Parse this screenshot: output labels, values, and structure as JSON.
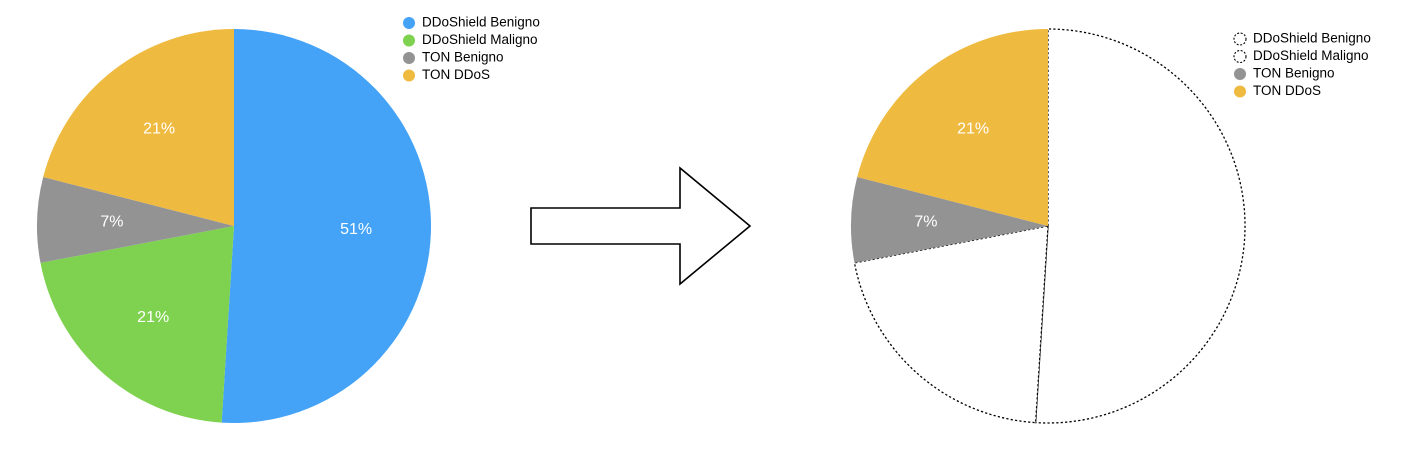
{
  "chart_data": [
    {
      "type": "pie",
      "categories": [
        "DDoShield Benigno",
        "DDoShield Maligno",
        "TON Benigno",
        "TON DDoS"
      ],
      "values": [
        51,
        21,
        7,
        21
      ],
      "labels": [
        "51%",
        "21%",
        "7%",
        "21%"
      ],
      "colors": [
        "#44a3f7",
        "#7ed24f",
        "#939393",
        "#efba40"
      ],
      "highlighted": [
        true,
        true,
        true,
        true
      ],
      "legend_position": "top-right"
    },
    {
      "type": "pie",
      "categories": [
        "DDoShield Benigno",
        "DDoShield Maligno",
        "TON Benigno",
        "TON DDoS"
      ],
      "values": [
        51,
        21,
        7,
        21
      ],
      "labels": [
        "",
        "",
        "7%",
        "21%"
      ],
      "colors": [
        "#44a3f7",
        "#7ed24f",
        "#939393",
        "#efba40"
      ],
      "highlighted": [
        false,
        false,
        true,
        true
      ],
      "legend_position": "top-right"
    }
  ],
  "arrow": {
    "direction": "right",
    "style": "outline"
  }
}
